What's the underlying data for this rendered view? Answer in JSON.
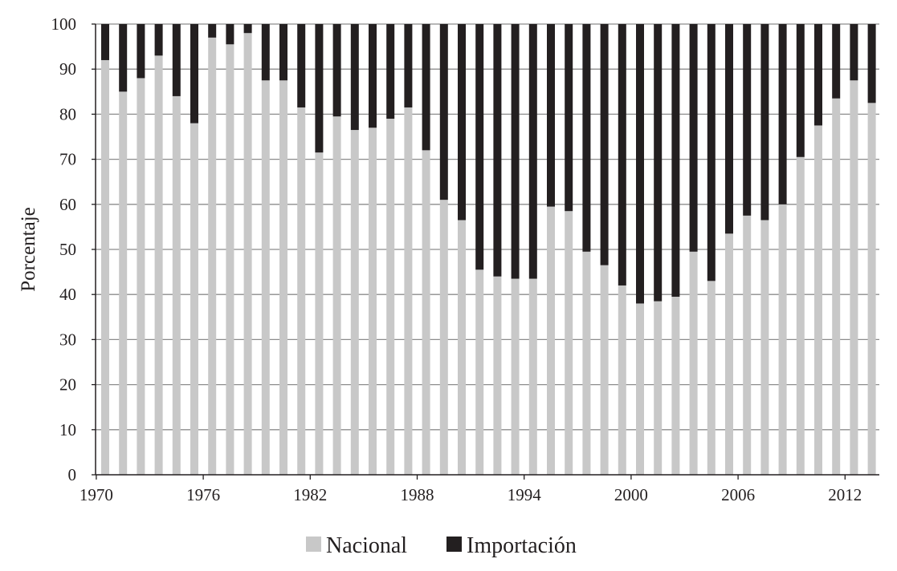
{
  "chart_data": {
    "type": "bar",
    "stacked": true,
    "title": "",
    "xlabel": "",
    "ylabel": "Porcentaje",
    "ylim": [
      0,
      100
    ],
    "yticks": [
      0,
      10,
      20,
      30,
      40,
      50,
      60,
      70,
      80,
      90,
      100
    ],
    "xticks": [
      "1970",
      "1976",
      "1982",
      "1988",
      "1994",
      "2000",
      "2006",
      "2012"
    ],
    "grid": "horizontal",
    "legend": "bottom",
    "categories": [
      "1970",
      "1971",
      "1972",
      "1973",
      "1974",
      "1975",
      "1976",
      "1977",
      "1978",
      "1979",
      "1980",
      "1981",
      "1982",
      "1983",
      "1984",
      "1985",
      "1986",
      "1987",
      "1988",
      "1989",
      "1990",
      "1991",
      "1992",
      "1993",
      "1994",
      "1995",
      "1996",
      "1997",
      "1998",
      "1999",
      "2000",
      "2001",
      "2002",
      "2003",
      "2004",
      "2005",
      "2006",
      "2007",
      "2008",
      "2009",
      "2010",
      "2011",
      "2012",
      "2013"
    ],
    "series": [
      {
        "name": "Nacional",
        "color": "#c8c8c8",
        "values": [
          92,
          85,
          88,
          93,
          84,
          78,
          97,
          95.5,
          98,
          87.5,
          87.5,
          81.5,
          71.5,
          79.5,
          76.5,
          77,
          79,
          81.5,
          72,
          61,
          56.5,
          45.5,
          44,
          43.5,
          43.5,
          59.5,
          58.5,
          49.5,
          46.5,
          42,
          38,
          38.5,
          39.5,
          49.5,
          43,
          53.5,
          57.5,
          56.5,
          60,
          70.5,
          77.5,
          83.5,
          87.5,
          82.5
        ]
      },
      {
        "name": "Importación",
        "color": "#231f20",
        "values": [
          8,
          15,
          12,
          7,
          16,
          22,
          3,
          4.5,
          2,
          12.5,
          12.5,
          18.5,
          28.5,
          20.5,
          23.5,
          23,
          21,
          18.5,
          28,
          39,
          43.5,
          54.5,
          56,
          56.5,
          56.5,
          40.5,
          41.5,
          50.5,
          53.5,
          58,
          62,
          61.5,
          60.5,
          50.5,
          57,
          46.5,
          42.5,
          43.5,
          40,
          29.5,
          22.5,
          16.5,
          12.5,
          17.5
        ]
      }
    ]
  }
}
